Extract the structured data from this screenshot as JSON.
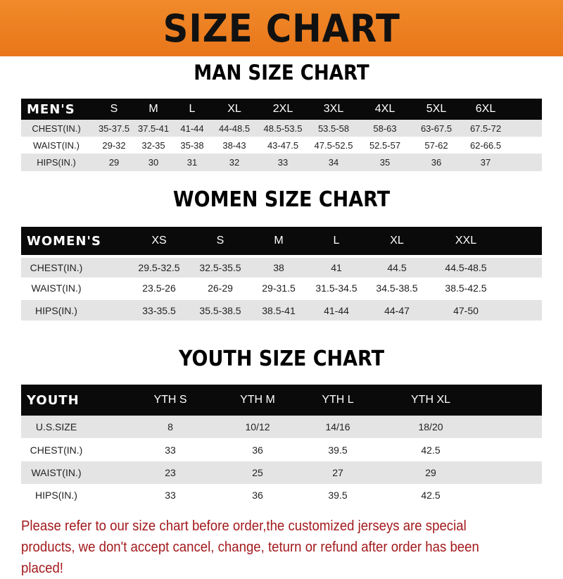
{
  "banner": {
    "title": "SIZE CHART"
  },
  "men": {
    "title": "MAN SIZE CHART",
    "header": [
      "MEN'S",
      "S",
      "M",
      "L",
      "XL",
      "2XL",
      "3XL",
      "4XL",
      "5XL",
      "6XL"
    ],
    "rows": [
      [
        "CHEST(IN.)",
        "35-37.5",
        "37.5-41",
        "41-44",
        "44-48.5",
        "48.5-53.5",
        "53.5-58",
        "58-63",
        "63-67.5",
        "67.5-72"
      ],
      [
        "WAIST(IN.)",
        "29-32",
        "32-35",
        "35-38",
        "38-43",
        "43-47.5",
        "47.5-52.5",
        "52.5-57",
        "57-62",
        "62-66.5"
      ],
      [
        "HIPS(IN.)",
        "29",
        "30",
        "31",
        "32",
        "33",
        "34",
        "35",
        "36",
        "37"
      ]
    ]
  },
  "women": {
    "title": "WOMEN SIZE CHART",
    "header": [
      "WOMEN'S",
      "XS",
      "S",
      "M",
      "L",
      "XL",
      "XXL"
    ],
    "rows": [
      [
        "CHEST(IN.)",
        "29.5-32.5",
        "32.5-35.5",
        "38",
        "41",
        "44.5",
        "44.5-48.5"
      ],
      [
        "WAIST(IN.)",
        "23.5-26",
        "26-29",
        "29-31.5",
        "31.5-34.5",
        "34.5-38.5",
        "38.5-42.5"
      ],
      [
        "HIPS(IN.)",
        "33-35.5",
        "35.5-38.5",
        "38.5-41",
        "41-44",
        "44-47",
        "47-50"
      ]
    ]
  },
  "youth": {
    "title": "YOUTH SIZE CHART",
    "header": [
      "YOUTH",
      "YTH S",
      "YTH M",
      "YTH L",
      "YTH XL"
    ],
    "rows": [
      [
        "U.S.SIZE",
        "8",
        "10/12",
        "14/16",
        "18/20"
      ],
      [
        "CHEST(IN.)",
        "33",
        "36",
        "39.5",
        "42.5"
      ],
      [
        "WAIST(IN.)",
        "23",
        "25",
        "27",
        "29"
      ],
      [
        "HIPS(IN.)",
        "33",
        "36",
        "39.5",
        "42.5"
      ]
    ]
  },
  "note": "Please refer to our size chart before order,the customized jerseys are special products, we don't accept cancel, change, teturn or refund after order has been placed!"
}
